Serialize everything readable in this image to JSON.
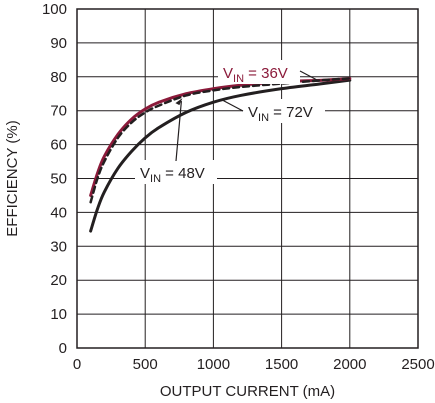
{
  "chart_data": {
    "type": "line",
    "title": "",
    "xlabel": "OUTPUT CURRENT (mA)",
    "ylabel": "EFFICIENCY (%)",
    "xlim": [
      0,
      2500
    ],
    "ylim": [
      0,
      100
    ],
    "xticks": [
      "0",
      "500",
      "1000",
      "1500",
      "2000",
      "2500"
    ],
    "yticks": [
      "0",
      "10",
      "20",
      "30",
      "40",
      "50",
      "60",
      "70",
      "80",
      "90",
      "100"
    ],
    "grid": true,
    "series": [
      {
        "name": "VIN = 36V",
        "color": "#8b1a3a",
        "style": "solid",
        "x": [
          100,
          150,
          200,
          300,
          400,
          500,
          600,
          800,
          1000,
          1200,
          1500,
          1800,
          2000
        ],
        "y": [
          45,
          51.5,
          56.5,
          63,
          67.5,
          70.5,
          72.5,
          75,
          76.5,
          77.5,
          78.5,
          79,
          79.5
        ]
      },
      {
        "name": "VIN = 48V",
        "color": "#231f20",
        "style": "dashed",
        "x": [
          100,
          150,
          200,
          300,
          400,
          500,
          600,
          800,
          1000,
          1200,
          1500,
          1800,
          2000
        ],
        "y": [
          43,
          50,
          55,
          62,
          66.5,
          69.5,
          71.5,
          74.5,
          76,
          77,
          78,
          79,
          79.5
        ]
      },
      {
        "name": "VIN = 72V",
        "color": "#231f20",
        "style": "solid",
        "x": [
          100,
          150,
          200,
          300,
          400,
          500,
          600,
          800,
          1000,
          1200,
          1500,
          1800,
          2000
        ],
        "y": [
          34.5,
          41,
          46,
          53,
          58,
          62,
          65,
          69.5,
          72.5,
          74.5,
          76.5,
          78,
          79
        ]
      }
    ],
    "annotations": [
      {
        "main": "V",
        "sub": "IN",
        "rest": " = 36V",
        "series": "VIN = 36V",
        "color": "#8b1a3a"
      },
      {
        "main": "V",
        "sub": "IN",
        "rest": " = 48V",
        "series": "VIN = 48V",
        "color": "#231f20"
      },
      {
        "main": "V",
        "sub": "IN",
        "rest": " = 72V",
        "series": "VIN = 72V",
        "color": "#231f20"
      }
    ]
  }
}
